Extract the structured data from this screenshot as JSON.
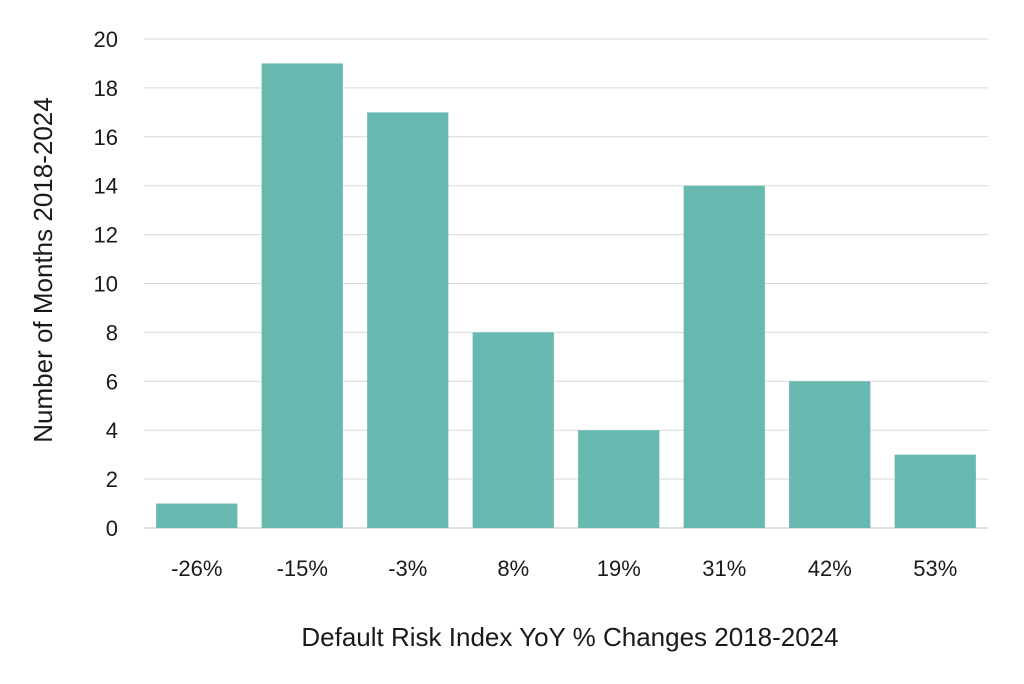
{
  "chart_data": {
    "type": "bar",
    "title": "",
    "xlabel": "Default Risk Index YoY % Changes 2018-2024",
    "ylabel": "Number of Months 2018-2024",
    "categories": [
      "-26%",
      "-15%",
      "-3%",
      "8%",
      "19%",
      "31%",
      "42%",
      "53%"
    ],
    "values": [
      1,
      19,
      17,
      8,
      4,
      14,
      6,
      3
    ],
    "ylim": [
      0,
      20
    ],
    "yticks": [
      0,
      2,
      4,
      6,
      8,
      10,
      12,
      14,
      16,
      18,
      20
    ],
    "grid": true,
    "legend": "none",
    "bar_color": "#67b9af"
  }
}
